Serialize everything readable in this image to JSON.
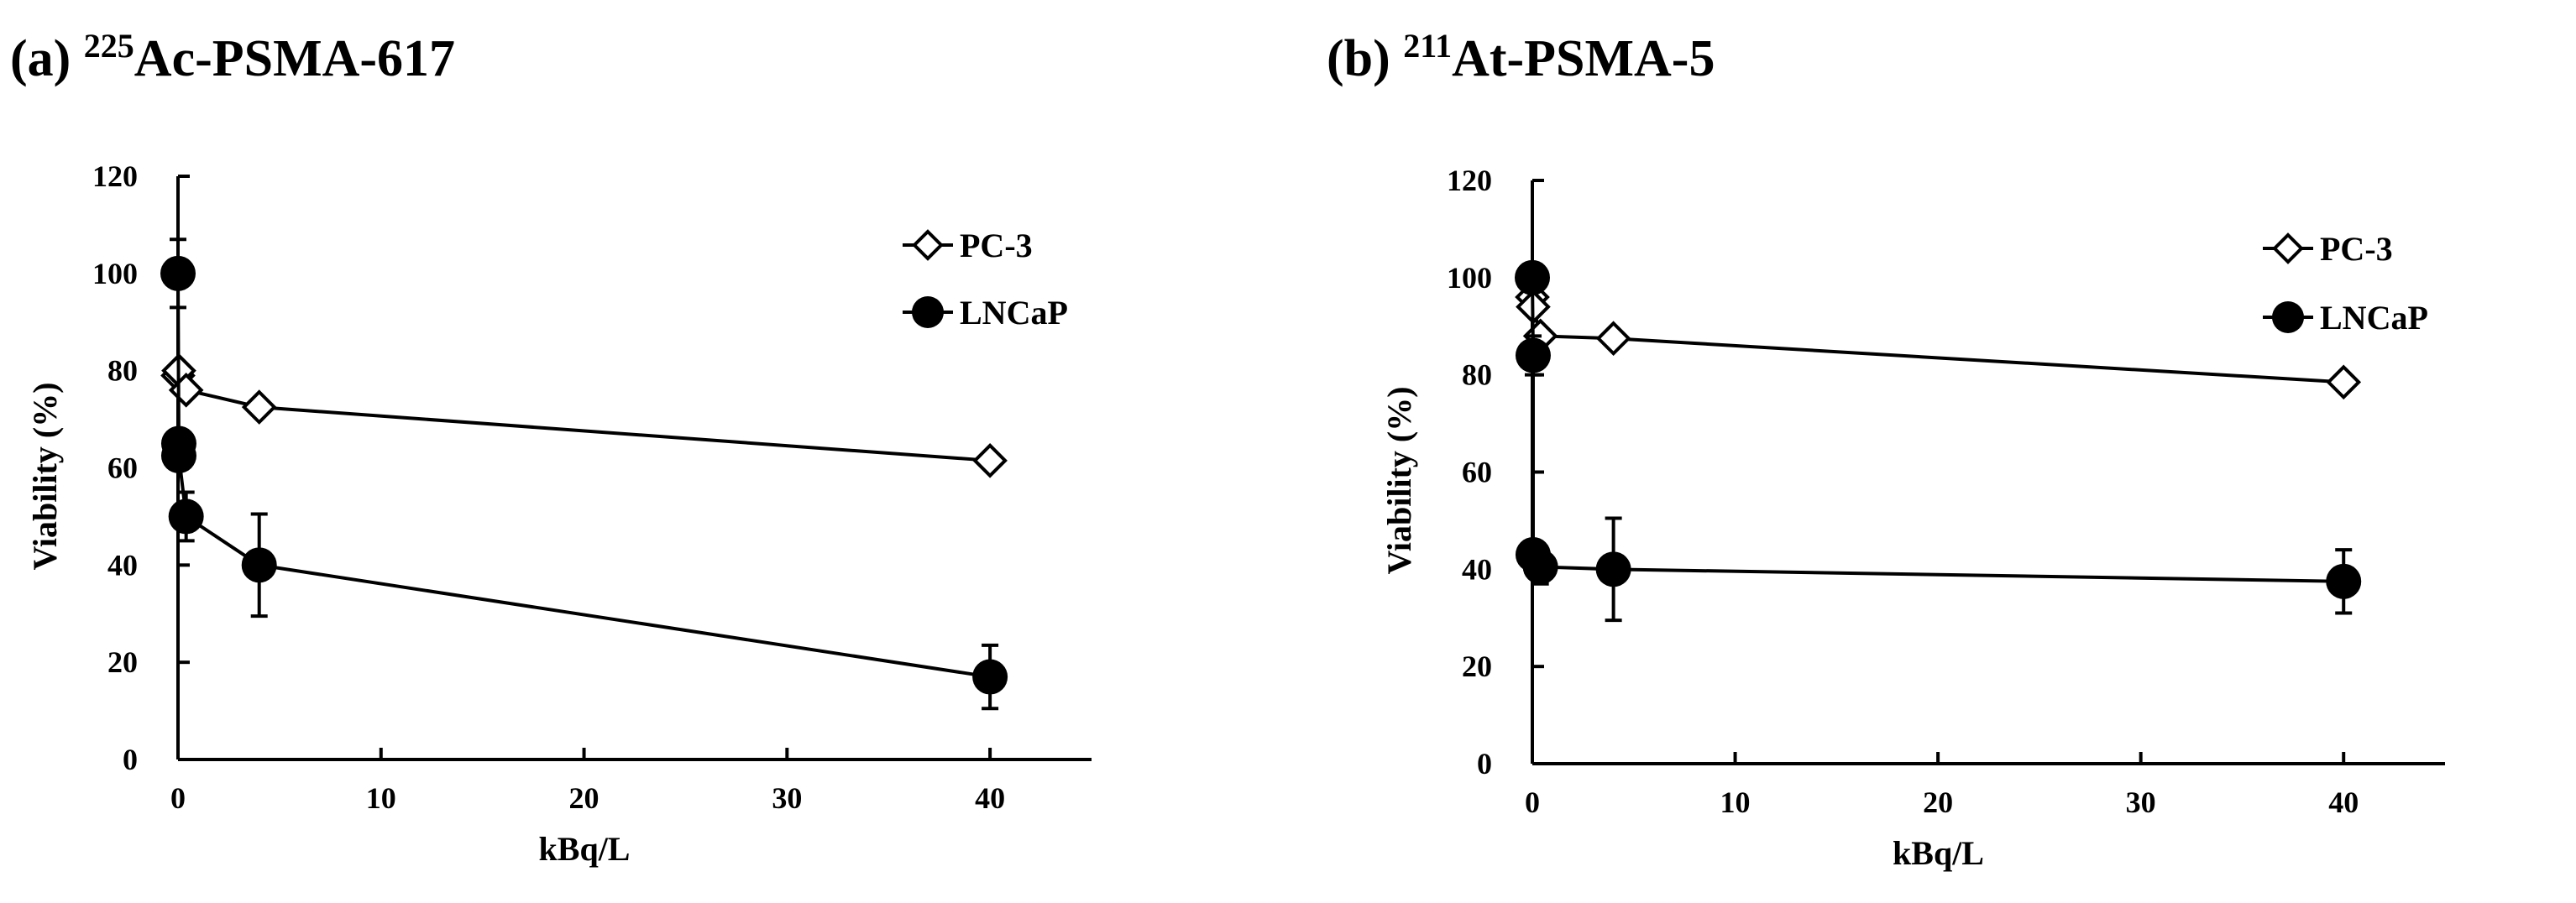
{
  "chart_data": [
    {
      "type": "line",
      "panel_label": "(a)",
      "title_sup": "225",
      "title_main": "Ac-PSMA-617",
      "xlabel": "kBq/L",
      "ylabel": "Viability (%)",
      "xlim": [
        0,
        45
      ],
      "ylim": [
        0,
        120
      ],
      "xticks": [
        0,
        10,
        20,
        30,
        40
      ],
      "yticks": [
        0,
        20,
        40,
        60,
        80,
        100,
        120
      ],
      "grid": false,
      "legend_position": "top-right",
      "series": [
        {
          "name": "PC-3",
          "marker": "open-diamond",
          "x": [
            0,
            0.04,
            0.4,
            4,
            40
          ],
          "y": [
            79,
            80,
            76,
            72.5,
            61.5
          ],
          "err": [
            0,
            0,
            0,
            0,
            0
          ]
        },
        {
          "name": "LNCaP",
          "marker": "filled-circle",
          "x": [
            0,
            0.04,
            0.04,
            0.4,
            4,
            40
          ],
          "y": [
            100,
            65,
            62.5,
            50,
            40,
            17
          ],
          "err": [
            7,
            0,
            0,
            5,
            10.5,
            6.5
          ]
        }
      ]
    },
    {
      "type": "line",
      "panel_label": "(b)",
      "title_sup": "211",
      "title_main": "At-PSMA-5",
      "xlabel": "kBq/L",
      "ylabel": "Viability (%)",
      "xlim": [
        0,
        45
      ],
      "ylim": [
        0,
        120
      ],
      "xticks": [
        0,
        10,
        20,
        30,
        40
      ],
      "yticks": [
        0,
        20,
        40,
        60,
        80,
        100,
        120
      ],
      "grid": false,
      "legend_position": "top-right",
      "series": [
        {
          "name": "PC-3",
          "marker": "open-diamond",
          "x": [
            0,
            0.04,
            0.4,
            4,
            40
          ],
          "y": [
            96,
            94,
            88,
            87.5,
            78.5
          ],
          "err": [
            0,
            0,
            0,
            0,
            0
          ]
        },
        {
          "name": "LNCaP",
          "marker": "filled-circle",
          "x": [
            0,
            0.04,
            0.04,
            0.4,
            4,
            40
          ],
          "y": [
            100,
            84,
            43,
            40.5,
            40,
            37.5
          ],
          "err": [
            0,
            4,
            0,
            3.5,
            10.5,
            6.5
          ]
        }
      ]
    }
  ]
}
